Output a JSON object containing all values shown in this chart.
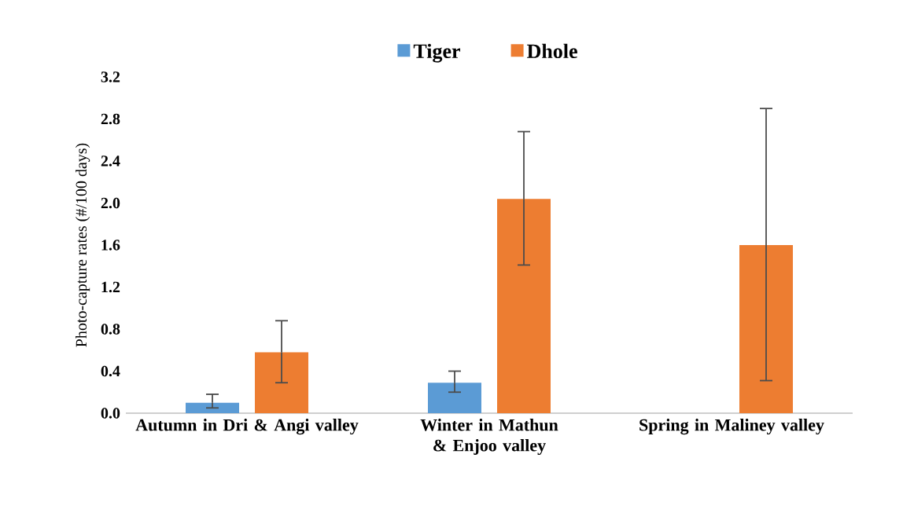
{
  "chart_data": {
    "type": "bar",
    "ylabel": "Photo-capture rates (#/100 days)",
    "categories": [
      "Autumn in Dri & Angi valley",
      "Winter in Mathun & Enjoo valley",
      "Spring in Maliney valley"
    ],
    "series": [
      {
        "name": "Tiger",
        "color": "#5b9bd5",
        "values": [
          0.1,
          0.29,
          null
        ],
        "errors": [
          [
            0.05,
            0.18
          ],
          [
            0.2,
            0.4
          ],
          null
        ]
      },
      {
        "name": "Dhole",
        "color": "#ed7d31",
        "values": [
          0.58,
          2.04,
          1.6
        ],
        "errors": [
          [
            0.29,
            0.88
          ],
          [
            1.41,
            2.68
          ],
          [
            0.31,
            2.9
          ]
        ]
      }
    ],
    "ylim": [
      0,
      3.2
    ],
    "yticks": [
      {
        "value": 0,
        "label": "0.0"
      },
      {
        "value": 0.4,
        "label": "0.4"
      },
      {
        "value": 0.8,
        "label": "0.8"
      },
      {
        "value": 1.2,
        "label": "1.2"
      },
      {
        "value": 1.6,
        "label": "1.6"
      },
      {
        "value": 2.0,
        "label": "2.0"
      },
      {
        "value": 2.4,
        "label": "2.4"
      },
      {
        "value": 2.8,
        "label": "2.8"
      },
      {
        "value": 3.2,
        "label": "3.2"
      }
    ],
    "legend": "top"
  }
}
